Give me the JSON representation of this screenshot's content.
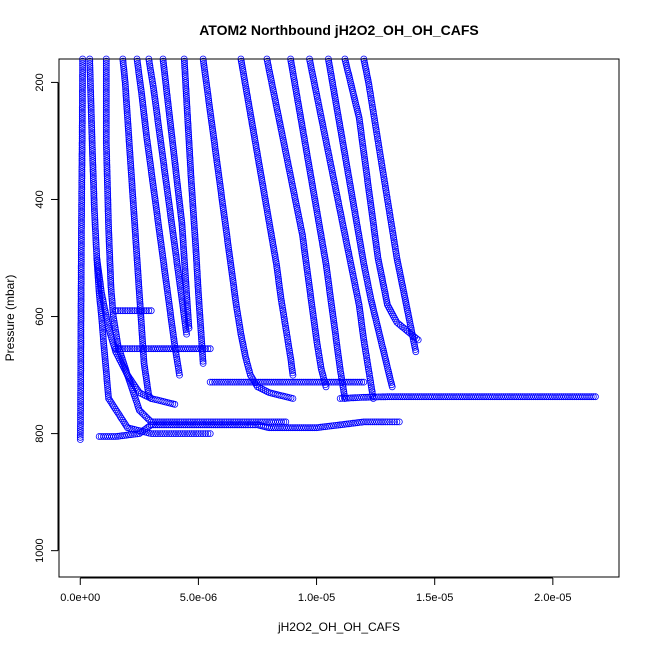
{
  "chart_data": {
    "type": "scatter",
    "title": "ATOM2 Northbound jH2O2_OH_OH_CAFS",
    "xlabel": "jH2O2_OH_OH_CAFS",
    "ylabel": "Pressure (mbar)",
    "xlim": [
      -9e-07,
      2.28e-05
    ],
    "ylim": [
      1045,
      160
    ],
    "y_axis_inverted": true,
    "grid": false,
    "legend": "none",
    "x_ticks": [
      0,
      5e-06,
      1e-05,
      1.5e-05,
      2e-05
    ],
    "x_tick_labels": [
      "0.0e+00",
      "5.0e-06",
      "1.0e-05",
      "1.5e-05",
      "2.0e-05"
    ],
    "y_ticks": [
      200,
      400,
      600,
      800,
      1000
    ],
    "y_tick_labels": [
      "200",
      "400",
      "600",
      "800",
      "1000"
    ],
    "series": [
      {
        "color": "#0000ff",
        "marker": "open-circle",
        "profiles": [
          {
            "x": [
              1e-07,
              8e-08,
              5e-08,
              3e-08,
              2e-08,
              1e-08,
              0.0
            ],
            "y": [
              160,
              300,
              450,
              600,
              700,
              780,
              810
            ]
          },
          {
            "x": [
              4e-07,
              5e-07,
              6e-07,
              7e-07,
              8e-07,
              9e-07,
              1e-06,
              1.2e-06,
              2e-06,
              3e-06,
              5e-06,
              5.5e-06
            ],
            "y": [
              160,
              300,
              420,
              500,
              560,
              600,
              650,
              740,
              790,
              800,
              800,
              800
            ]
          },
          {
            "x": [
              1.1e-06,
              1.1e-06,
              1.2e-06,
              1.3e-06,
              1.4e-06,
              1.6e-06,
              2e-06,
              2.5e-06,
              3e-06,
              4e-06,
              6e-06,
              8e-06,
              8.7e-06
            ],
            "y": [
              160,
              300,
              450,
              550,
              600,
              650,
              700,
              760,
              780,
              780,
              780,
              780,
              780
            ]
          },
          {
            "x": [
              1.8e-06,
              1.9e-06,
              2e-06,
              2.1e-06,
              2.2e-06,
              2.3e-06,
              2.4e-06,
              2.5e-06,
              2.6e-06,
              2.7e-06,
              2.9e-06,
              3e-06
            ],
            "y": [
              160,
              200,
              260,
              320,
              380,
              440,
              500,
              560,
              620,
              680,
              735,
              740
            ]
          },
          {
            "x": [
              2.4e-06,
              2.6e-06,
              2.8e-06,
              3e-06,
              3.2e-06,
              3.4e-06,
              3.6e-06,
              3.8e-06,
              4e-06,
              4.2e-06
            ],
            "y": [
              160,
              220,
              290,
              350,
              410,
              470,
              530,
              590,
              650,
              700
            ]
          },
          {
            "x": [
              2.9e-06,
              3.1e-06,
              3.3e-06,
              3.5e-06,
              3.7e-06,
              3.9e-06,
              4.1e-06,
              4.3e-06,
              4.5e-06
            ],
            "y": [
              160,
              210,
              270,
              330,
              390,
              450,
              510,
              570,
              630
            ]
          },
          {
            "x": [
              3.5e-06,
              3.7e-06,
              3.9e-06,
              4.1e-06,
              4.3e-06,
              4.4e-06,
              4.5e-06,
              4.6e-06
            ],
            "y": [
              160,
              230,
              300,
              370,
              440,
              500,
              560,
              620
            ]
          },
          {
            "x": [
              4.4e-06,
              4.5e-06,
              4.6e-06,
              4.7e-06,
              4.8e-06,
              4.9e-06,
              5e-06,
              5.1e-06,
              5.2e-06
            ],
            "y": [
              160,
              230,
              300,
              370,
              430,
              490,
              560,
              620,
              680
            ]
          },
          {
            "x": [
              5.2e-06,
              5.4e-06,
              5.6e-06,
              5.8e-06,
              6e-06,
              6.2e-06,
              6.4e-06,
              6.6e-06,
              6.8e-06,
              7e-06,
              7.2e-06,
              7.5e-06,
              8e-06,
              8.5e-06,
              9e-06
            ],
            "y": [
              160,
              220,
              280,
              340,
              400,
              460,
              520,
              580,
              630,
              670,
              700,
              720,
              730,
              735,
              740
            ]
          },
          {
            "x": [
              6.8e-06,
              7.1e-06,
              7.4e-06,
              7.7e-06,
              8e-06,
              8.3e-06,
              8.5e-06,
              8.7e-06,
              8.9e-06,
              9e-06
            ],
            "y": [
              160,
              230,
              300,
              370,
              440,
              510,
              570,
              620,
              670,
              700
            ]
          },
          {
            "x": [
              7.9e-06,
              8.2e-06,
              8.5e-06,
              8.8e-06,
              9.1e-06,
              9.4e-06,
              9.6e-06,
              9.8e-06,
              1e-05,
              1.02e-05,
              1.04e-05
            ],
            "y": [
              160,
              220,
              280,
              340,
              400,
              460,
              520,
              580,
              640,
              690,
              720
            ]
          },
          {
            "x": [
              8.9e-06,
              9.2e-06,
              9.5e-06,
              9.8e-06,
              1.01e-05,
              1.04e-05,
              1.06e-05,
              1.08e-05,
              1.1e-05,
              1.12e-05
            ],
            "y": [
              160,
              230,
              300,
              370,
              440,
              510,
              570,
              630,
              690,
              740
            ]
          },
          {
            "x": [
              9.7e-06,
              1e-05,
              1.03e-05,
              1.06e-05,
              1.09e-05,
              1.12e-05,
              1.15e-05,
              1.18e-05,
              1.2e-05,
              1.22e-05,
              1.24e-05
            ],
            "y": [
              160,
              220,
              280,
              340,
              400,
              460,
              520,
              580,
              640,
              690,
              740
            ]
          },
          {
            "x": [
              1.05e-05,
              1.08e-05,
              1.11e-05,
              1.14e-05,
              1.17e-05,
              1.2e-05,
              1.23e-05,
              1.26e-05,
              1.29e-05,
              1.32e-05
            ],
            "y": [
              160,
              230,
              300,
              370,
              440,
              510,
              570,
              620,
              670,
              720
            ]
          },
          {
            "x": [
              1.12e-05,
              1.15e-05,
              1.18e-05,
              1.2e-05,
              1.22e-05,
              1.24e-05,
              1.26e-05,
              1.28e-05,
              1.3e-05,
              1.34e-05,
              1.4e-05,
              1.43e-05
            ],
            "y": [
              160,
              210,
              260,
              320,
              380,
              440,
              500,
              540,
              580,
              610,
              630,
              640
            ]
          },
          {
            "x": [
              1.2e-05,
              1.22e-05,
              1.24e-05,
              1.26e-05,
              1.28e-05,
              1.3e-05,
              1.32e-05,
              1.34e-05,
              1.38e-05,
              1.42e-05
            ],
            "y": [
              160,
              200,
              250,
              300,
              350,
              400,
              450,
              500,
              580,
              660
            ]
          },
          {
            "x": [
              1.1e-05,
              1.2e-05,
              1.3e-05,
              1.4e-05,
              1.5e-05,
              1.6e-05,
              1.7e-05,
              1.8e-05,
              1.9e-05,
              2e-05,
              2.1e-05,
              2.18e-05
            ],
            "y": [
              740,
              738,
              737,
              737,
              737,
              737,
              737,
              737,
              737,
              737,
              737,
              737
            ]
          },
          {
            "x": [
              5.5e-06,
              7e-06,
              8e-06,
              9e-06,
              1e-05,
              1.1e-05,
              1.2e-05
            ],
            "y": [
              712,
              712,
              712,
              712,
              712,
              712,
              712
            ]
          },
          {
            "x": [
              1.5e-06,
              2e-06,
              2.5e-06,
              3e-06,
              4e-06,
              5e-06,
              5.5e-06
            ],
            "y": [
              655,
              655,
              655,
              655,
              655,
              655,
              655
            ]
          },
          {
            "x": [
              1.5e-06,
              2e-06,
              2.5e-06,
              3e-06
            ],
            "y": [
              590,
              590,
              590,
              590
            ]
          },
          {
            "x": [
              8e-07,
              1.5e-06,
              2.5e-06,
              3e-06,
              4e-06,
              5e-06,
              6e-06,
              7e-06,
              7.5e-06,
              8e-06,
              9e-06,
              1e-05,
              1.1e-05,
              1.2e-05,
              1.3e-05,
              1.35e-05
            ],
            "y": [
              805,
              805,
              800,
              785,
              785,
              785,
              785,
              785,
              785,
              790,
              790,
              790,
              785,
              780,
              780,
              780
            ]
          },
          {
            "x": [
              7e-07,
              9e-07,
              1.2e-06,
              1.5e-06,
              2e-06,
              2.5e-06,
              3e-06,
              3.5e-06,
              4e-06
            ],
            "y": [
              500,
              560,
              620,
              660,
              700,
              730,
              740,
              745,
              750
            ]
          }
        ]
      }
    ]
  }
}
